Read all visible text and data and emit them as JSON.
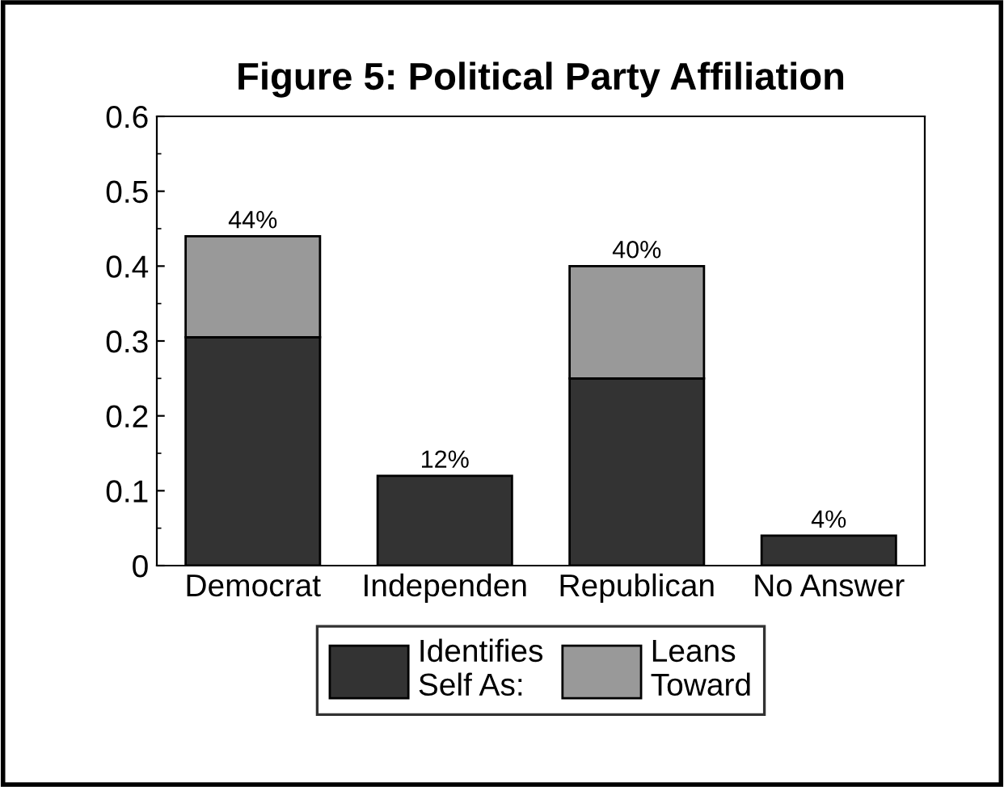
{
  "chart_data": {
    "type": "bar",
    "title": "Figure 5: Political Party Affiliation",
    "categories": [
      "Democrat",
      "Independen",
      "Republican",
      "No Answer"
    ],
    "series": [
      {
        "name": "Identifies\nSelf As:",
        "color": "#333333",
        "values": [
          0.305,
          0.12,
          0.25,
          0.04
        ]
      },
      {
        "name": "Leans\nToward",
        "color": "#999999",
        "values": [
          0.135,
          null,
          0.15,
          null
        ]
      }
    ],
    "stacked": true,
    "totals": [
      "44%",
      "12%",
      "40%",
      "4%"
    ],
    "ylim": [
      0,
      0.6
    ],
    "yticks": [
      0,
      0.1,
      0.2,
      0.3,
      0.4,
      0.5,
      0.6
    ],
    "grid": false,
    "legend": "bottom"
  }
}
